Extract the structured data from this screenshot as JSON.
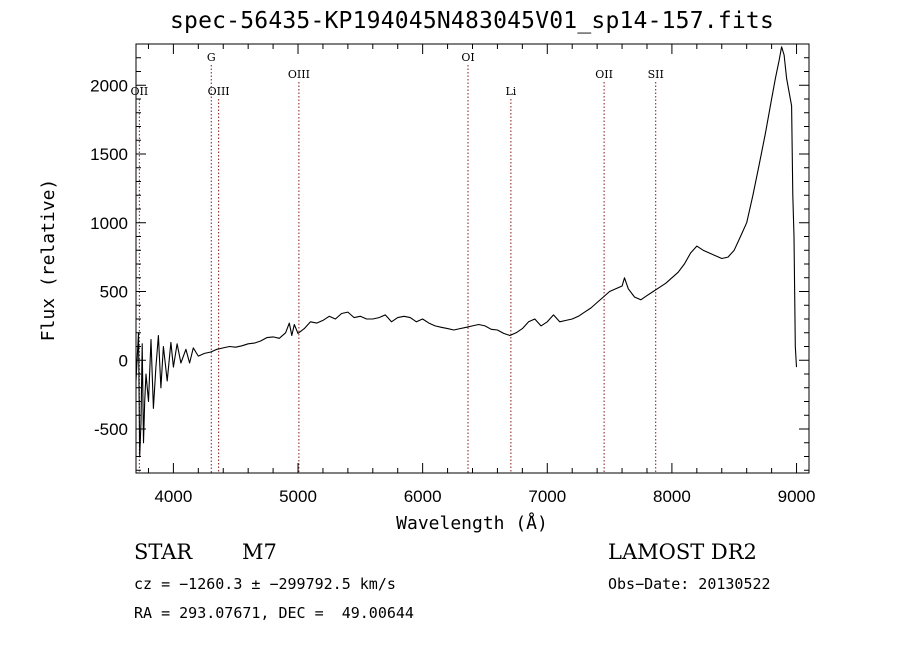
{
  "chart_data": {
    "type": "line",
    "title": "spec-56435-KP194045N483045V01_sp14-157.fits",
    "xlabel": "Wavelength (Å)",
    "ylabel": "Flux (relative)",
    "xlim": [
      3700,
      9100
    ],
    "ylim": [
      -820,
      2300
    ],
    "x_ticks": [
      4000,
      5000,
      6000,
      7000,
      8000,
      9000
    ],
    "y_ticks": [
      -500,
      0,
      500,
      1000,
      1500,
      2000
    ],
    "line_color": "#000000",
    "marker_color": "#8b1a1a",
    "lines": [
      {
        "label": "OII",
        "wavelength": 3727,
        "tier": 2
      },
      {
        "label": "G",
        "wavelength": 4304,
        "tier": 0
      },
      {
        "label": "OIII",
        "wavelength": 4363,
        "tier": 2
      },
      {
        "label": "OIII",
        "wavelength": 5007,
        "tier": 1
      },
      {
        "label": "OI",
        "wavelength": 6364,
        "tier": 0
      },
      {
        "label": "Li",
        "wavelength": 6708,
        "tier": 2
      },
      {
        "label": "OII",
        "wavelength": 7456,
        "tier": 1
      },
      {
        "label": "SII",
        "wavelength": 7870,
        "tier": 1
      }
    ],
    "series": [
      {
        "x": [
          3700,
          3720,
          3730,
          3740,
          3750,
          3760,
          3770,
          3780,
          3800,
          3820,
          3840,
          3860,
          3880,
          3900,
          3920,
          3950,
          3980,
          4000,
          4030,
          4060,
          4100,
          4130,
          4160,
          4200,
          4250,
          4300,
          4350,
          4400,
          4450,
          4500,
          4550,
          4600,
          4650,
          4700,
          4750,
          4800,
          4850,
          4900,
          4930,
          4950,
          4970,
          5000,
          5050,
          5100,
          5150,
          5200,
          5250,
          5300,
          5350,
          5400,
          5450,
          5500,
          5550,
          5600,
          5650,
          5700,
          5750,
          5800,
          5850,
          5900,
          5950,
          6000,
          6050,
          6100,
          6150,
          6200,
          6250,
          6300,
          6350,
          6400,
          6450,
          6500,
          6550,
          6600,
          6650,
          6700,
          6750,
          6800,
          6850,
          6900,
          6950,
          7000,
          7050,
          7100,
          7150,
          7200,
          7250,
          7300,
          7350,
          7400,
          7450,
          7500,
          7550,
          7600,
          7620,
          7650,
          7700,
          7750,
          7800,
          7850,
          7900,
          7950,
          8000,
          8050,
          8100,
          8150,
          8200,
          8250,
          8300,
          8350,
          8400,
          8450,
          8500,
          8550,
          8600,
          8650,
          8700,
          8750,
          8800,
          8830,
          8860,
          8880,
          8900,
          8920,
          8940,
          8960,
          8970,
          8980,
          8990,
          9000
        ],
        "y": [
          -150,
          200,
          -700,
          -450,
          120,
          -600,
          -300,
          -100,
          -300,
          150,
          -350,
          -50,
          180,
          -200,
          100,
          -150,
          130,
          -50,
          120,
          -20,
          80,
          -20,
          90,
          30,
          50,
          60,
          80,
          90,
          100,
          95,
          105,
          120,
          125,
          140,
          165,
          170,
          160,
          200,
          270,
          180,
          260,
          195,
          230,
          280,
          270,
          290,
          320,
          300,
          340,
          350,
          310,
          320,
          300,
          300,
          310,
          330,
          280,
          310,
          320,
          310,
          280,
          300,
          270,
          250,
          240,
          230,
          220,
          230,
          240,
          250,
          260,
          250,
          225,
          220,
          195,
          180,
          200,
          230,
          280,
          300,
          250,
          280,
          330,
          280,
          290,
          300,
          320,
          350,
          380,
          420,
          460,
          500,
          520,
          540,
          600,
          520,
          460,
          440,
          470,
          500,
          530,
          560,
          600,
          640,
          700,
          780,
          830,
          800,
          780,
          760,
          740,
          750,
          800,
          900,
          1000,
          1200,
          1420,
          1650,
          1900,
          2050,
          2180,
          2280,
          2220,
          2050,
          1950,
          1850,
          1200,
          900,
          100,
          -50
        ]
      }
    ]
  },
  "info": {
    "obj_class": "STAR",
    "obj_subclass": "M7",
    "survey": "LAMOST DR2",
    "cz": "cz = −1260.3 ± −299792.5 km/s",
    "obs_date": "Obs−Date: 20130522",
    "radec": "RA = 293.07671, DEC =  49.00644"
  }
}
